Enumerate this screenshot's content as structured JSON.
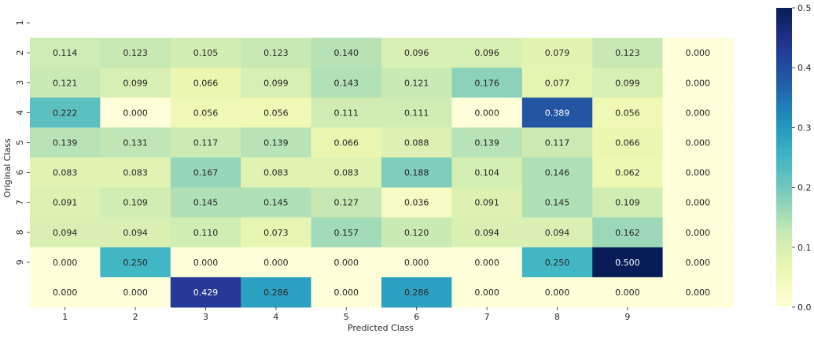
{
  "chart_data": {
    "type": "heatmap",
    "title": "",
    "xlabel": "Predicted Class",
    "ylabel": "Original Class",
    "x_tick_labels": [
      "1",
      "2",
      "3",
      "4",
      "5",
      "6",
      "7",
      "8",
      "9",
      ""
    ],
    "y_tick_labels": [
      "1",
      "2",
      "3",
      "4",
      "5",
      "6",
      "7",
      "8",
      "9",
      ""
    ],
    "matrix": [
      [
        null,
        null,
        null,
        null,
        null,
        null,
        null,
        null,
        null,
        null
      ],
      [
        0.114,
        0.123,
        0.105,
        0.123,
        0.14,
        0.096,
        0.096,
        0.079,
        0.123,
        0.0
      ],
      [
        0.121,
        0.099,
        0.066,
        0.099,
        0.143,
        0.121,
        0.176,
        0.077,
        0.099,
        0.0
      ],
      [
        0.222,
        0.0,
        0.056,
        0.056,
        0.111,
        0.111,
        0.0,
        0.389,
        0.056,
        0.0
      ],
      [
        0.139,
        0.131,
        0.117,
        0.139,
        0.066,
        0.088,
        0.139,
        0.117,
        0.066,
        0.0
      ],
      [
        0.083,
        0.083,
        0.167,
        0.083,
        0.083,
        0.188,
        0.104,
        0.146,
        0.062,
        0.0
      ],
      [
        0.091,
        0.109,
        0.145,
        0.145,
        0.127,
        0.036,
        0.091,
        0.145,
        0.109,
        0.0
      ],
      [
        0.094,
        0.094,
        0.11,
        0.073,
        0.157,
        0.12,
        0.094,
        0.094,
        0.162,
        0.0
      ],
      [
        0.0,
        0.25,
        0.0,
        0.0,
        0.0,
        0.0,
        0.0,
        0.25,
        0.5,
        0.0
      ],
      [
        0.0,
        0.0,
        0.429,
        0.286,
        0.0,
        0.286,
        0.0,
        0.0,
        0.0,
        0.0
      ]
    ],
    "colormap": "YlGnBu",
    "vmin": 0.0,
    "vmax": 0.5,
    "colorbar_ticks": [
      "0.0",
      "0.1",
      "0.2",
      "0.3",
      "0.4",
      "0.5"
    ],
    "grid": false
  }
}
